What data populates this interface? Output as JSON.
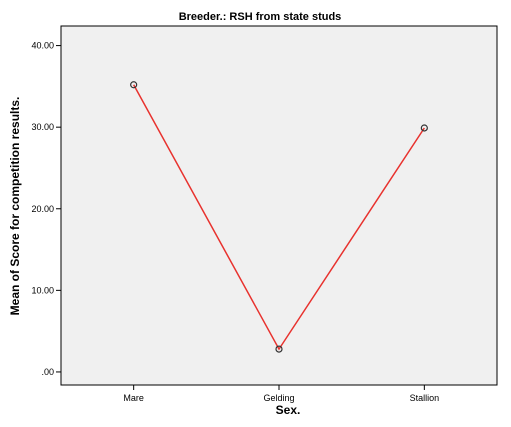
{
  "chart_data": {
    "type": "line",
    "title": "Breeder.: RSH from state studs",
    "xlabel": "Sex.",
    "ylabel": "Mean of Score for competition results.",
    "categories": [
      "Mare",
      "Gelding",
      "Stallion"
    ],
    "series": [
      {
        "values": [
          35.2,
          2.8,
          29.9
        ]
      }
    ],
    "ylim": [
      -1.6,
      42.4
    ],
    "yticks": [
      ".00",
      "10.00",
      "20.00",
      "30.00",
      "40.00"
    ],
    "grid": false,
    "legend": "none",
    "colors": {
      "line": "#e8322e",
      "marker": "#333333",
      "plot_background": "#f0f0f0",
      "axis": "#000000"
    }
  }
}
